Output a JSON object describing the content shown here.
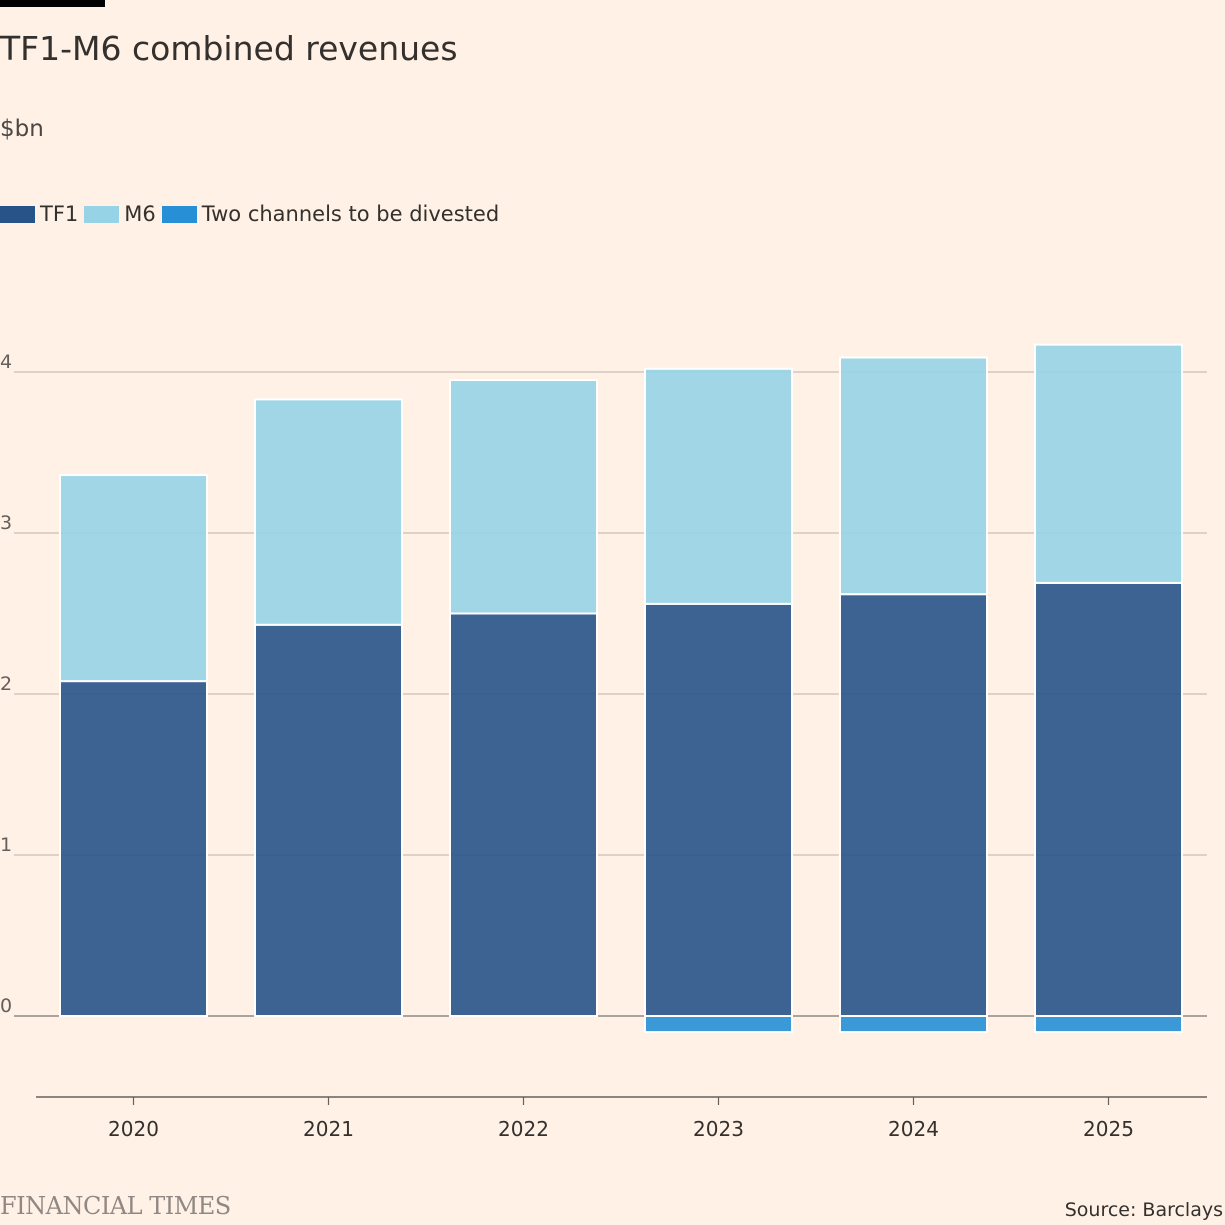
{
  "header": {
    "title": "TF1-M6 combined revenues",
    "subtitle": "$bn"
  },
  "legend": {
    "items": [
      {
        "label": "TF1",
        "color": "#285388"
      },
      {
        "label": "M6",
        "color": "#96d3e6"
      },
      {
        "label": "Two channels to be divested",
        "color": "#268fd6"
      }
    ]
  },
  "chart_data": {
    "type": "bar",
    "stacked": true,
    "title": "TF1-M6 combined revenues",
    "subtitle": "$bn",
    "xlabel": "",
    "ylabel": "",
    "categories": [
      "2020",
      "2021",
      "2022",
      "2023",
      "2024",
      "2025"
    ],
    "series": [
      {
        "name": "TF1",
        "color": "#285388",
        "values": [
          2.08,
          2.43,
          2.5,
          2.56,
          2.62,
          2.69
        ]
      },
      {
        "name": "M6",
        "color": "#96d3e6",
        "values": [
          1.28,
          1.4,
          1.45,
          1.46,
          1.47,
          1.48
        ]
      },
      {
        "name": "Two channels to be divested",
        "color": "#268fd6",
        "values": [
          0,
          0,
          0,
          -0.1,
          -0.1,
          -0.1
        ]
      }
    ],
    "ylim": [
      -0.5,
      4.2
    ],
    "yticks": [
      0,
      1,
      2,
      3,
      4
    ],
    "ytick_labels": [
      "0",
      "1",
      "2",
      "3",
      "4"
    ],
    "grid": true,
    "legend_position": "top-left"
  },
  "footer": {
    "brand": "FINANCIAL TIMES",
    "source": "Source: Barclays"
  }
}
